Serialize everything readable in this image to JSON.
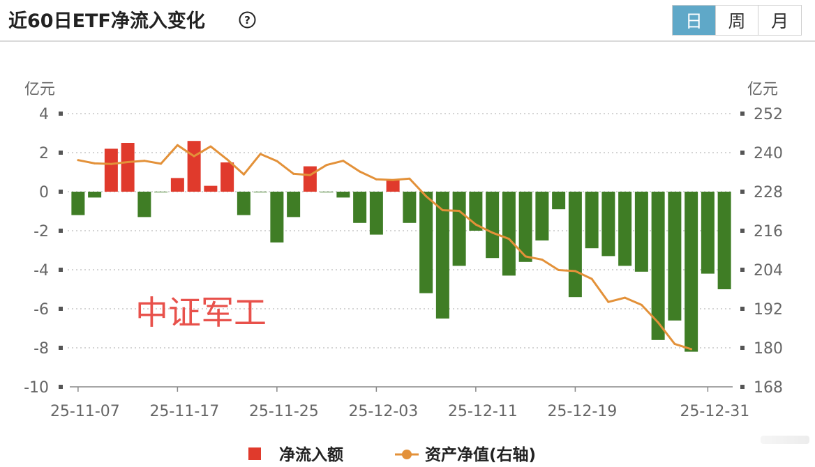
{
  "header": {
    "title": "近60日ETF净流入变化",
    "periods": [
      {
        "label": "日",
        "active": true
      },
      {
        "label": "周",
        "active": false
      },
      {
        "label": "月",
        "active": false
      }
    ]
  },
  "colors": {
    "inflow": "#e03a2c",
    "outflow": "#3f7d25",
    "line": "#e39139",
    "grid": "#bbbbbb",
    "axis_text": "#666666",
    "annotation": "#e8514b"
  },
  "chart_data": {
    "type": "bar",
    "left_axis": {
      "unit": "亿元",
      "ticks": [
        4,
        2,
        0,
        -2,
        -4,
        -6,
        -8,
        -10
      ],
      "range": [
        -10,
        4
      ]
    },
    "right_axis": {
      "unit": "亿元",
      "ticks": [
        252,
        240,
        228,
        216,
        204,
        192,
        180,
        168
      ],
      "range": [
        168,
        252
      ]
    },
    "x_tick_labels": [
      "25-11-07",
      "25-11-17",
      "25-11-25",
      "25-12-03",
      "25-12-11",
      "25-12-19",
      "25-12-31"
    ],
    "x_tick_indices": [
      0,
      6,
      12,
      18,
      24,
      30,
      38
    ],
    "series": [
      {
        "name": "净流入额",
        "kind": "bar",
        "axis": "left",
        "values": [
          -1.2,
          -0.3,
          2.2,
          2.5,
          -1.3,
          0,
          0.7,
          2.6,
          0.3,
          1.5,
          -1.2,
          0,
          -2.6,
          -1.3,
          1.3,
          0,
          -0.3,
          -1.6,
          -2.2,
          0.6,
          -1.6,
          -5.2,
          -6.5,
          -3.8,
          -2.0,
          -3.4,
          -4.3,
          -3.6,
          -2.5,
          -0.9,
          -5.4,
          -2.9,
          -3.3,
          -3.8,
          -4.1,
          -7.6,
          -6.6,
          -8.2,
          -4.2,
          -5.0
        ]
      },
      {
        "name": "资产净值(右轴)",
        "kind": "line",
        "axis": "right",
        "values": [
          237.7,
          236.7,
          236.5,
          237.1,
          237.5,
          236.6,
          242.3,
          238.9,
          241.9,
          237.9,
          233.3,
          239.6,
          237.4,
          233.5,
          233.1,
          236.2,
          237.5,
          234.2,
          231.8,
          231.6,
          232.0,
          226.6,
          222.3,
          222.1,
          217.9,
          215.4,
          213.5,
          208.1,
          207.1,
          203.9,
          203.6,
          201.2,
          194.1,
          195.4,
          193.2,
          187.8,
          181.2,
          179.6,
          null,
          null
        ]
      }
    ],
    "annotation": "中证军工"
  }
}
